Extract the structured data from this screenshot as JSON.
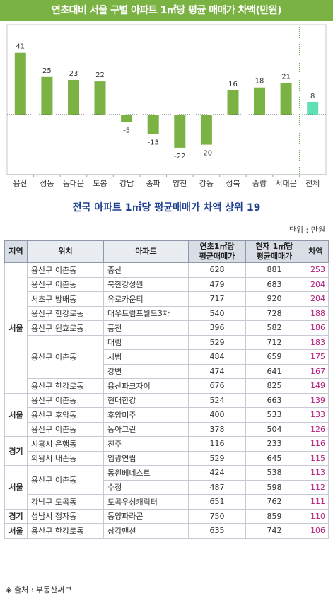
{
  "title": "연초대비 서울 구별 아파트 1㎡당 평균 매매가 차액(만원)",
  "colors": {
    "header_bg": "#7bb244",
    "bar_green": "#7bb244",
    "bar_total": "#5fe0b4",
    "diff_text": "#b31b7a",
    "table_title": "#1f3f8f"
  },
  "chart_data": {
    "type": "bar",
    "title": "연초대비 서울 구별 아파트 1㎡당 평균 매매가 차액(만원)",
    "categories": [
      "용산",
      "성동",
      "동대문",
      "도봉",
      "강남",
      "송파",
      "양천",
      "강동",
      "성북",
      "중랑",
      "서대문",
      "전체"
    ],
    "values": [
      41,
      25,
      23,
      22,
      -5,
      -13,
      -22,
      -20,
      16,
      18,
      21,
      8
    ],
    "ylim": [
      -30,
      60
    ],
    "grid": false,
    "legend": "none",
    "xlabel": "",
    "ylabel": ""
  },
  "table": {
    "title": "전국 아파트 1㎡당 평균매매가 차액 상위 19",
    "unit": "단위 : 만원",
    "headers": {
      "region": "지역",
      "location": "위치",
      "apartment": "아파트",
      "start_line1": "연초1㎡당",
      "start_line2": "평균매매가",
      "current_line1": "현재 1㎡당",
      "current_line2": "평균매매가",
      "diff": "차액"
    },
    "rows": [
      {
        "region": "서울",
        "location": "용산구 이촌동",
        "apartment": "중산",
        "start": "628",
        "current": "881",
        "diff": "253"
      },
      {
        "region": "",
        "location": "용산구 이촌동",
        "apartment": "북한강성원",
        "start": "479",
        "current": "683",
        "diff": "204"
      },
      {
        "region": "",
        "location": "서초구 방배동",
        "apartment": "유로카운티",
        "start": "717",
        "current": "920",
        "diff": "204"
      },
      {
        "region": "",
        "location": "용산구 한강로동",
        "apartment": "대우트럼프월드3차",
        "start": "540",
        "current": "728",
        "diff": "188"
      },
      {
        "region": "",
        "location": "용산구 원효로동",
        "apartment": "풍전",
        "start": "396",
        "current": "582",
        "diff": "186"
      },
      {
        "region": "",
        "location": "용산구 이촌동",
        "apartment": "대림",
        "start": "529",
        "current": "712",
        "diff": "183"
      },
      {
        "region": "",
        "location": "",
        "apartment": "시범",
        "start": "484",
        "current": "659",
        "diff": "175"
      },
      {
        "region": "",
        "location": "",
        "apartment": "강변",
        "start": "474",
        "current": "641",
        "diff": "167"
      },
      {
        "region": "",
        "location": "용산구 한강로동",
        "apartment": "용산파크자이",
        "start": "676",
        "current": "825",
        "diff": "149"
      },
      {
        "region": "서울",
        "location": "용산구 이촌동",
        "apartment": "현대한강",
        "start": "524",
        "current": "663",
        "diff": "139"
      },
      {
        "region": "",
        "location": "용산구 후암동",
        "apartment": "후암미주",
        "start": "400",
        "current": "533",
        "diff": "133"
      },
      {
        "region": "",
        "location": "용산구 이촌동",
        "apartment": "동아그린",
        "start": "378",
        "current": "504",
        "diff": "126"
      },
      {
        "region": "경기",
        "location": "시흥시 은행동",
        "apartment": "진주",
        "start": "116",
        "current": "233",
        "diff": "116"
      },
      {
        "region": "",
        "location": "의왕시 내손동",
        "apartment": "임광연립",
        "start": "529",
        "current": "645",
        "diff": "115"
      },
      {
        "region": "서울",
        "location": "용산구 이촌동",
        "apartment": "동원베네스트",
        "start": "424",
        "current": "538",
        "diff": "113"
      },
      {
        "region": "",
        "location": "",
        "apartment": "수정",
        "start": "487",
        "current": "598",
        "diff": "112"
      },
      {
        "region": "",
        "location": "강남구 도곡동",
        "apartment": "도곡우성캐릭터",
        "start": "651",
        "current": "762",
        "diff": "111"
      },
      {
        "region": "경기",
        "location": "성남시 정자동",
        "apartment": "동양파라곤",
        "start": "750",
        "current": "859",
        "diff": "110"
      },
      {
        "region": "서울",
        "location": "용산구 한강로동",
        "apartment": "삼각맨션",
        "start": "635",
        "current": "742",
        "diff": "106"
      }
    ]
  },
  "source": "◈ 출처 : 부동산써브"
}
